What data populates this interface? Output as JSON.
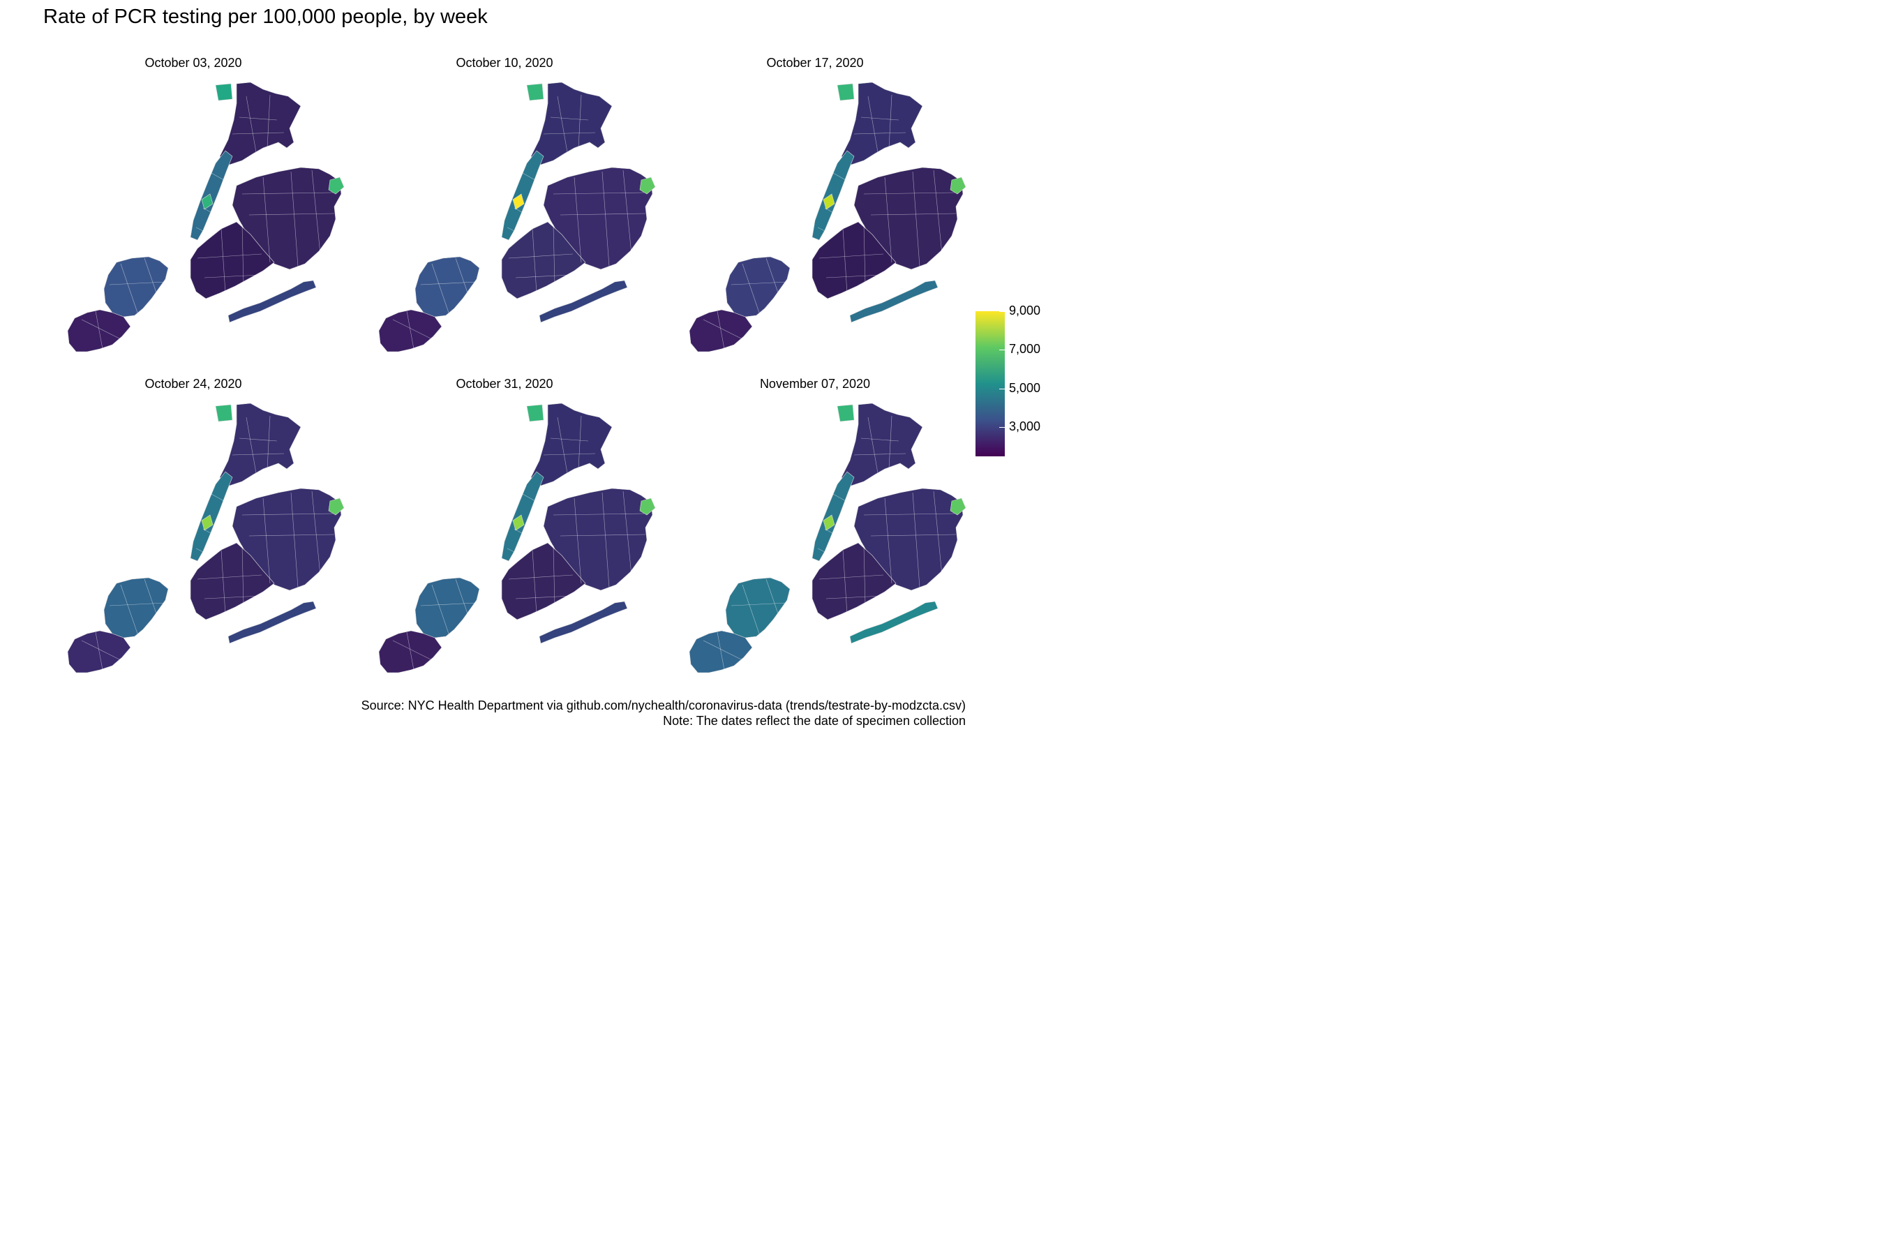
{
  "title": "Rate of PCR testing per 100,000 people, by week",
  "panels": [
    {
      "label": "October 03, 2020",
      "colors": {
        "bronx": "#35245f",
        "manhattan": "#2e6d8e",
        "queens": "#36245f",
        "brooklyn": "#321c58",
        "statenisland": "#39568c",
        "statenisland_south": "#3b1f62",
        "rockaway": "#34437e",
        "highlight_a": "#2fb47c",
        "highlight_b": "#22a884",
        "highlight_c": "#3dbc74"
      }
    },
    {
      "label": "October 10, 2020",
      "colors": {
        "bronx": "#35306d",
        "manhattan": "#2a788e",
        "queens": "#3a2c6b",
        "brooklyn": "#38306b",
        "statenisland": "#39568c",
        "statenisland_south": "#3b1f62",
        "rockaway": "#34437e",
        "highlight_a": "#fde725",
        "highlight_b": "#35b779",
        "highlight_c": "#5ec962"
      }
    },
    {
      "label": "October 17, 2020",
      "colors": {
        "bronx": "#35306d",
        "manhattan": "#2a788e",
        "queens": "#36245f",
        "brooklyn": "#321c58",
        "statenisland": "#3a3f7c",
        "statenisland_south": "#3b1f62",
        "rockaway": "#2c728e",
        "highlight_a": "#c2df23",
        "highlight_b": "#35b779",
        "highlight_c": "#5ec962"
      }
    },
    {
      "label": "October 24, 2020",
      "colors": {
        "bronx": "#38306d",
        "manhattan": "#2a788e",
        "queens": "#38306d",
        "brooklyn": "#36245f",
        "statenisland": "#31668e",
        "statenisland_south": "#3b2a6c",
        "rockaway": "#34437e",
        "highlight_a": "#8fd744",
        "highlight_b": "#35b779",
        "highlight_c": "#5ec962"
      }
    },
    {
      "label": "October 31, 2020",
      "colors": {
        "bronx": "#35306d",
        "manhattan": "#2a788e",
        "queens": "#38306d",
        "brooklyn": "#36245f",
        "statenisland": "#31668e",
        "statenisland_south": "#3b2060",
        "rockaway": "#34437e",
        "highlight_a": "#8fd744",
        "highlight_b": "#35b779",
        "highlight_c": "#5ec962"
      }
    },
    {
      "label": "November 07, 2020",
      "colors": {
        "bronx": "#38306d",
        "manhattan": "#2a788e",
        "queens": "#38306d",
        "brooklyn": "#36245f",
        "statenisland": "#2a788e",
        "statenisland_south": "#31668e",
        "rockaway": "#23898e",
        "highlight_a": "#8fd744",
        "highlight_b": "#35b779",
        "highlight_c": "#5ec962"
      }
    }
  ],
  "legend": {
    "ticks": [
      {
        "label": "9,000",
        "value": 9000
      },
      {
        "label": "7,000",
        "value": 7000
      },
      {
        "label": "5,000",
        "value": 5000
      },
      {
        "label": "3,000",
        "value": 3000
      }
    ],
    "range": [
      1500,
      9000
    ],
    "colors": [
      "#440154",
      "#3b528b",
      "#21918c",
      "#5ec962",
      "#fde725"
    ]
  },
  "source_line1": "Source: NYC Health Department via github.com/nychealth/coronavirus-data (trends/testrate-by-modzcta.csv)",
  "source_line2": "Note: The dates reflect the date of specimen collection"
}
